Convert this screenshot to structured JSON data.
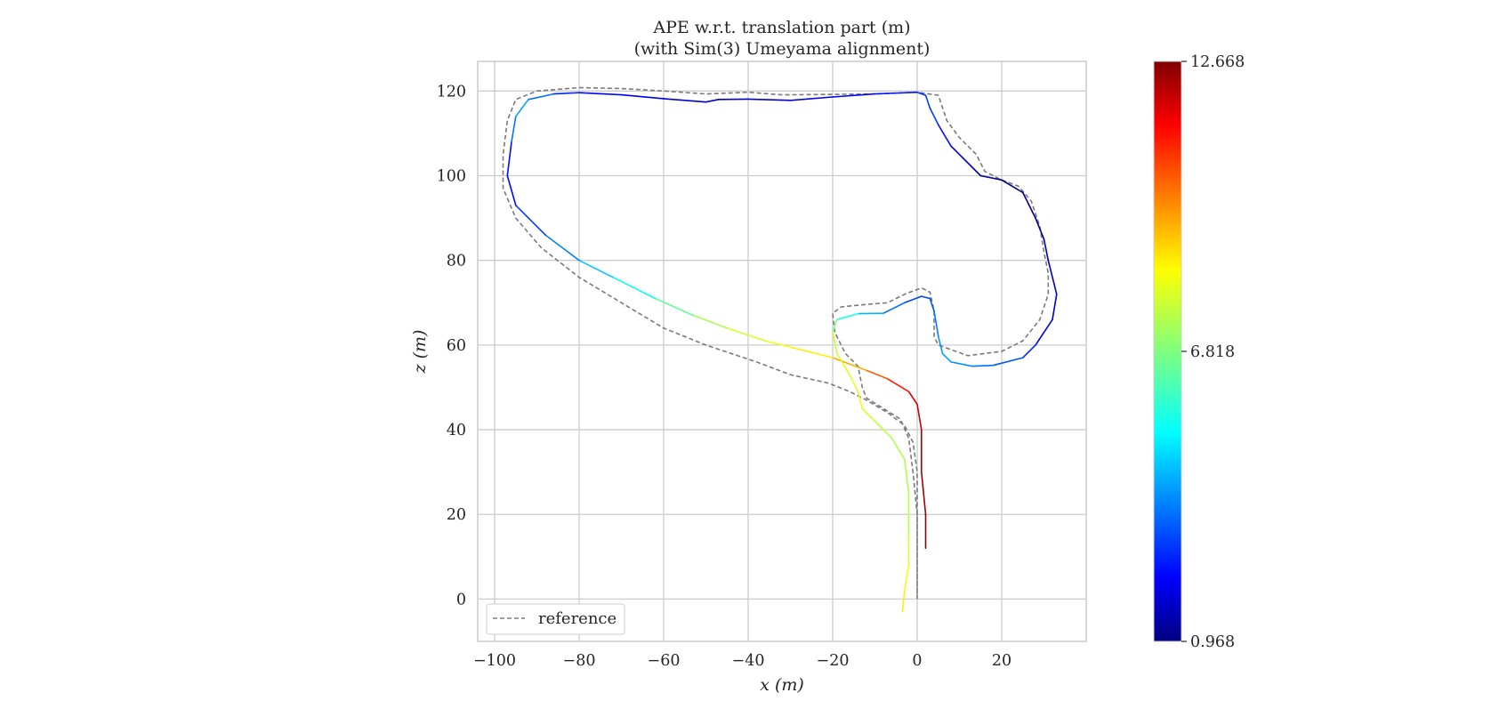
{
  "chart_data": {
    "type": "line",
    "title": "APE w.r.t. translation part (m)",
    "subtitle": "(with Sim(3) Umeyama alignment)",
    "xlabel": "x (m)",
    "ylabel": "z (m)",
    "xlim": [
      -104,
      40
    ],
    "ylim": [
      -10,
      127
    ],
    "xticks": [
      -100,
      -80,
      -60,
      -40,
      -20,
      0,
      20
    ],
    "xtick_labels": [
      "−100",
      "−80",
      "−60",
      "−40",
      "−20",
      "0",
      "20"
    ],
    "yticks": [
      0,
      20,
      40,
      60,
      80,
      100,
      120
    ],
    "ytick_labels": [
      "0",
      "20",
      "40",
      "60",
      "80",
      "100",
      "120"
    ],
    "grid": true,
    "legend": {
      "position": "lower-left",
      "entries": [
        "reference"
      ]
    },
    "colorbar": {
      "colormap": "jet",
      "min": 0.968,
      "max": 12.668,
      "ticks": [
        0.968,
        6.818,
        12.668
      ],
      "tick_labels": [
        "0.968",
        "6.818",
        "12.668"
      ]
    },
    "series": [
      {
        "name": "reference",
        "style": "dashed",
        "color": "#7a7a7a",
        "points": [
          [
            0,
            0
          ],
          [
            0,
            10
          ],
          [
            0,
            20
          ],
          [
            0,
            30
          ],
          [
            -1,
            37
          ],
          [
            -3,
            41
          ],
          [
            -7,
            44
          ],
          [
            -12,
            47
          ],
          [
            -16,
            49
          ],
          [
            -21,
            51
          ],
          [
            -30,
            53
          ],
          [
            -38,
            56
          ],
          [
            -50,
            60
          ],
          [
            -60,
            64
          ],
          [
            -70,
            70
          ],
          [
            -80,
            76
          ],
          [
            -89,
            83
          ],
          [
            -95,
            90
          ],
          [
            -98,
            97
          ],
          [
            -98,
            105
          ],
          [
            -97,
            113
          ],
          [
            -95,
            118
          ],
          [
            -90,
            120
          ],
          [
            -80,
            120.8
          ],
          [
            -70,
            120.6
          ],
          [
            -60,
            120
          ],
          [
            -50,
            119.3
          ],
          [
            -40,
            119.7
          ],
          [
            -32,
            119.1
          ],
          [
            -20,
            119.2
          ],
          [
            -10,
            119.3
          ],
          [
            0,
            119.7
          ],
          [
            5,
            119
          ],
          [
            7,
            113
          ],
          [
            10,
            109
          ],
          [
            14,
            105
          ],
          [
            16,
            101
          ],
          [
            20,
            99
          ],
          [
            24,
            97.5
          ],
          [
            27,
            94
          ],
          [
            29,
            88
          ],
          [
            30,
            82
          ],
          [
            31,
            77
          ],
          [
            31,
            72
          ],
          [
            29,
            66
          ],
          [
            25,
            61
          ],
          [
            20,
            58.5
          ],
          [
            12,
            57.5
          ],
          [
            5,
            60
          ],
          [
            4,
            62
          ],
          [
            4,
            68
          ],
          [
            3,
            72.5
          ],
          [
            1,
            73.5
          ],
          [
            -3,
            72
          ],
          [
            -7,
            70
          ],
          [
            -12,
            69.6
          ],
          [
            -18,
            69
          ],
          [
            -20,
            67.5
          ],
          [
            -19.5,
            63
          ],
          [
            -17,
            58
          ],
          [
            -14,
            55
          ],
          [
            -13,
            50
          ],
          [
            -12,
            47.5
          ],
          [
            -8,
            45
          ],
          [
            -4,
            42.5
          ],
          [
            -2,
            38
          ],
          [
            -1,
            30
          ],
          [
            0,
            20
          ],
          [
            0,
            10
          ],
          [
            0,
            0
          ]
        ]
      },
      {
        "name": "",
        "style": "colormapped",
        "points": [
          [
            2,
            12,
            12.4
          ],
          [
            2,
            20,
            12.4
          ],
          [
            1,
            30,
            12.2
          ],
          [
            1,
            40,
            12.0
          ],
          [
            0,
            46,
            11.7
          ],
          [
            -2,
            49,
            11.3
          ],
          [
            -7,
            52,
            10.5
          ],
          [
            -12,
            54,
            9.8
          ],
          [
            -20,
            57,
            8.7
          ],
          [
            -30,
            59.5,
            8.2
          ],
          [
            -36,
            61,
            8.0
          ],
          [
            -45,
            64,
            7.6
          ],
          [
            -53,
            67,
            7.0
          ],
          [
            -62,
            71,
            6.0
          ],
          [
            -72,
            76,
            5.0
          ],
          [
            -80,
            80,
            4.4
          ],
          [
            -88,
            86,
            3.5
          ],
          [
            -95,
            93,
            2.8
          ],
          [
            -97,
            100,
            2.2
          ],
          [
            -96,
            108,
            3.0
          ],
          [
            -95,
            114,
            4.5
          ],
          [
            -92,
            118,
            4.2
          ],
          [
            -86,
            119.3,
            3.2
          ],
          [
            -80,
            119.6,
            2.6
          ],
          [
            -70,
            119.1,
            2.4
          ],
          [
            -60,
            118.2,
            2.2
          ],
          [
            -50,
            117.4,
            1.8
          ],
          [
            -47,
            118,
            1.8
          ],
          [
            -40,
            118.1,
            1.9
          ],
          [
            -30,
            117.8,
            2.0
          ],
          [
            -20,
            118.6,
            2.3
          ],
          [
            -10,
            119.3,
            2.6
          ],
          [
            0,
            119.7,
            2.8
          ],
          [
            2,
            119,
            3.0
          ],
          [
            3,
            116,
            3.4
          ],
          [
            5,
            112,
            2.8
          ],
          [
            8,
            107,
            2.4
          ],
          [
            13,
            102,
            1.8
          ],
          [
            15,
            100,
            1.5
          ],
          [
            20,
            99,
            1.3
          ],
          [
            25,
            96,
            1.0
          ],
          [
            28,
            90,
            1.0
          ],
          [
            30,
            85,
            1.2
          ],
          [
            31,
            80,
            1.8
          ],
          [
            33,
            72,
            1.6
          ],
          [
            32,
            66,
            1.9
          ],
          [
            28,
            60,
            2.6
          ],
          [
            25,
            57,
            3.2
          ],
          [
            18,
            55.2,
            3.6
          ],
          [
            13,
            55,
            3.9
          ],
          [
            8,
            56,
            4.2
          ],
          [
            6,
            58,
            4.4
          ],
          [
            5,
            62,
            4.0
          ],
          [
            4,
            68,
            3.6
          ],
          [
            3,
            71,
            3.3
          ],
          [
            1,
            71.5,
            3.0
          ],
          [
            -3,
            70,
            3.4
          ],
          [
            -8,
            67.5,
            4.0
          ],
          [
            -14,
            67.4,
            5.0
          ],
          [
            -19,
            66,
            6.2
          ],
          [
            -20,
            63,
            7.4
          ],
          [
            -19,
            58,
            7.8
          ],
          [
            -16,
            53,
            8.0
          ],
          [
            -14,
            49,
            8.0
          ],
          [
            -13,
            45,
            8.1
          ],
          [
            -10,
            42,
            7.6
          ],
          [
            -6,
            38,
            7.3
          ],
          [
            -3,
            33,
            7.4
          ],
          [
            -2,
            25,
            7.3
          ],
          [
            -2,
            15,
            7.6
          ],
          [
            -2,
            8,
            8.0
          ],
          [
            -3,
            2,
            8.3
          ],
          [
            -3.5,
            -3,
            8.6
          ]
        ]
      }
    ]
  }
}
